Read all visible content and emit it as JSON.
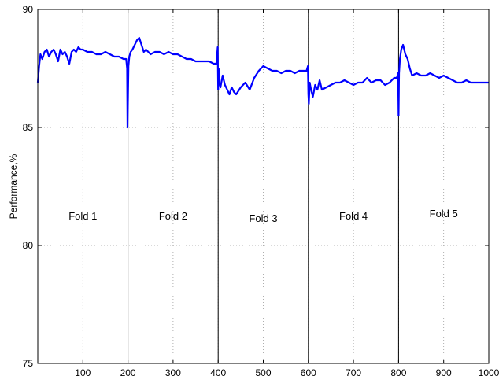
{
  "chart_data": {
    "type": "line",
    "title": "",
    "xlabel": "",
    "ylabel": "Performance,%",
    "xlim": [
      0,
      1000
    ],
    "ylim": [
      75,
      90
    ],
    "x_ticks": [
      100,
      200,
      300,
      400,
      500,
      600,
      700,
      800,
      900,
      1000
    ],
    "y_ticks": [
      75,
      80,
      85,
      90
    ],
    "grid": true,
    "line_color": "#0000ff",
    "separator_color": "#000000",
    "fold_boundaries": [
      200,
      400,
      600,
      800
    ],
    "annotations": [
      {
        "text": "Fold 1",
        "x": 100,
        "y": 81.1
      },
      {
        "text": "Fold 2",
        "x": 300,
        "y": 81.1
      },
      {
        "text": "Fold 3",
        "x": 500,
        "y": 81.0
      },
      {
        "text": "Fold 4",
        "x": 700,
        "y": 81.1
      },
      {
        "text": "Fold 5",
        "x": 900,
        "y": 81.2
      }
    ],
    "series": [
      {
        "x": [
          0,
          3,
          6,
          10,
          15,
          20,
          25,
          30,
          35,
          40,
          45,
          50,
          55,
          60,
          65,
          70,
          75,
          80,
          85,
          90,
          95,
          100,
          110,
          120,
          130,
          140,
          150,
          160,
          170,
          180,
          190,
          196,
          198,
          199,
          200,
          201,
          203,
          206,
          210,
          215,
          220,
          225,
          230,
          235,
          240,
          250,
          260,
          270,
          280,
          290,
          300,
          310,
          320,
          330,
          340,
          350,
          360,
          370,
          380,
          390,
          396,
          399,
          400,
          401,
          403,
          405,
          410,
          415,
          420,
          425,
          430,
          435,
          440,
          450,
          460,
          470,
          480,
          490,
          500,
          510,
          520,
          530,
          540,
          550,
          560,
          570,
          580,
          590,
          596,
          599,
          600,
          601,
          603,
          606,
          610,
          615,
          620,
          625,
          630,
          640,
          650,
          660,
          670,
          680,
          690,
          700,
          710,
          720,
          730,
          740,
          750,
          760,
          770,
          780,
          790,
          796,
          799,
          800,
          801,
          803,
          806,
          810,
          815,
          820,
          825,
          830,
          840,
          850,
          860,
          870,
          880,
          890,
          900,
          910,
          920,
          930,
          940,
          950,
          960,
          970,
          980,
          990,
          1000
        ],
        "y": [
          86.9,
          87.6,
          88.1,
          87.9,
          88.2,
          88.3,
          88.0,
          88.2,
          88.3,
          88.1,
          87.8,
          88.3,
          88.1,
          88.2,
          88.0,
          87.7,
          88.2,
          88.3,
          88.2,
          88.4,
          88.3,
          88.3,
          88.2,
          88.2,
          88.1,
          88.1,
          88.2,
          88.1,
          88.0,
          88.0,
          87.9,
          87.9,
          87.5,
          85.0,
          86.3,
          87.6,
          88.0,
          88.2,
          88.3,
          88.5,
          88.7,
          88.8,
          88.5,
          88.2,
          88.3,
          88.1,
          88.2,
          88.2,
          88.1,
          88.2,
          88.1,
          88.1,
          88.0,
          87.9,
          87.9,
          87.8,
          87.8,
          87.8,
          87.8,
          87.7,
          87.7,
          88.4,
          86.6,
          87.5,
          86.9,
          86.7,
          87.2,
          86.8,
          86.6,
          86.4,
          86.7,
          86.5,
          86.4,
          86.7,
          86.9,
          86.6,
          87.1,
          87.4,
          87.6,
          87.5,
          87.4,
          87.4,
          87.3,
          87.4,
          87.4,
          87.3,
          87.4,
          87.4,
          87.4,
          87.6,
          86.4,
          86.0,
          86.9,
          86.6,
          86.3,
          86.8,
          86.6,
          87.0,
          86.6,
          86.7,
          86.8,
          86.9,
          86.9,
          87.0,
          86.9,
          86.8,
          86.9,
          86.9,
          87.1,
          86.9,
          87.0,
          87.0,
          86.8,
          86.9,
          87.1,
          87.1,
          87.3,
          85.5,
          87.3,
          87.9,
          88.3,
          88.5,
          88.1,
          87.9,
          87.5,
          87.2,
          87.3,
          87.2,
          87.2,
          87.3,
          87.2,
          87.1,
          87.2,
          87.1,
          87.0,
          86.9,
          86.9,
          87.0,
          86.9,
          86.9,
          86.9,
          86.9,
          86.9
        ]
      }
    ]
  }
}
